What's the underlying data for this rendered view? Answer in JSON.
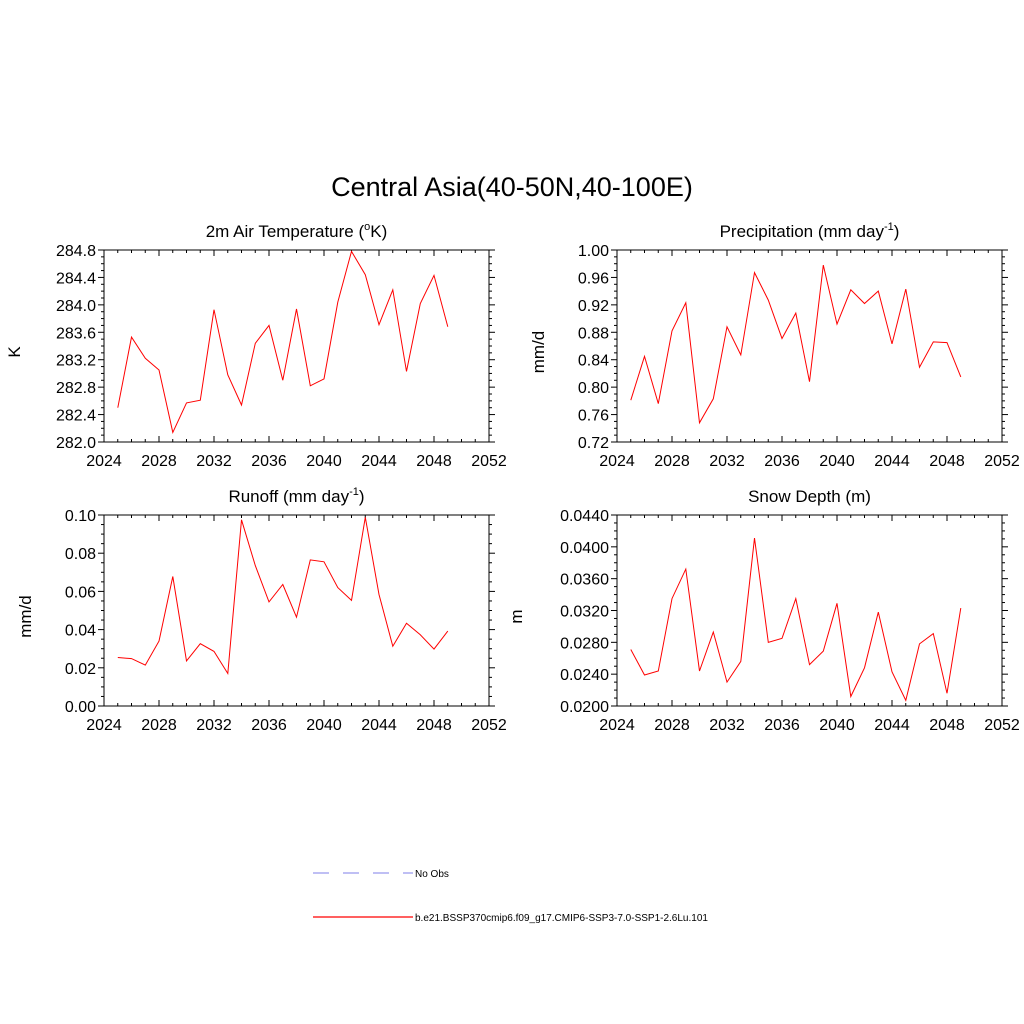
{
  "figure": {
    "title": "Central Asia(40-50N,40-100E)"
  },
  "colors": {
    "series_line": "#ff0000",
    "obs_line": "#9999ee",
    "axis": "#000000"
  },
  "legend": {
    "placement": "bottom-center",
    "items": [
      {
        "label": "No Obs",
        "style": "dashed",
        "color": "#9999ee"
      },
      {
        "label": "b.e21.BSSP370cmip6.f09_g17.CMIP6-SSP3-7.0-SSP1-2.6Lu.101",
        "style": "solid",
        "color": "#ff0000"
      }
    ]
  },
  "chart_data": [
    {
      "type": "line",
      "title": "2m Air Temperature (",
      "title_sup": "o",
      "title_after": "K)",
      "title_sup2": "",
      "title_end": "",
      "xlabel": "",
      "ylabel": "K",
      "xlim": [
        2024,
        2052
      ],
      "ylim": [
        282.0,
        284.8
      ],
      "xticks": [
        2024,
        2028,
        2032,
        2036,
        2040,
        2044,
        2048,
        2052
      ],
      "yticks": [
        "282.0",
        "282.4",
        "282.8",
        "283.2",
        "283.6",
        "284.0",
        "284.4",
        "284.8"
      ],
      "x": [
        2025,
        2026,
        2027,
        2028,
        2029,
        2030,
        2031,
        2032,
        2033,
        2034,
        2035,
        2036,
        2037,
        2038,
        2039,
        2040,
        2041,
        2042,
        2043,
        2044,
        2045,
        2046,
        2047,
        2048,
        2049
      ],
      "series": [
        {
          "name": "b.e21.BSSP370cmip6.f09_g17.CMIP6-SSP3-7.0-SSP1-2.6Lu.101",
          "values": [
            282.5,
            283.53,
            283.22,
            283.05,
            282.14,
            282.57,
            282.61,
            283.93,
            282.98,
            282.54,
            283.44,
            283.7,
            282.9,
            283.94,
            282.82,
            282.92,
            284.04,
            284.78,
            284.44,
            283.71,
            284.22,
            283.03,
            284.02,
            284.43,
            283.68
          ]
        }
      ]
    },
    {
      "type": "line",
      "title": "Precipitation (mm day",
      "title_sup": "",
      "title_after": "",
      "title_sup2": "-1",
      "title_end": ")",
      "xlabel": "",
      "ylabel": "mm/d",
      "xlim": [
        2024,
        2052
      ],
      "ylim": [
        0.72,
        1.0
      ],
      "xticks": [
        2024,
        2028,
        2032,
        2036,
        2040,
        2044,
        2048,
        2052
      ],
      "yticks": [
        "0.72",
        "0.76",
        "0.80",
        "0.84",
        "0.88",
        "0.92",
        "0.96",
        "1.00"
      ],
      "x": [
        2025,
        2026,
        2027,
        2028,
        2029,
        2030,
        2031,
        2032,
        2033,
        2034,
        2035,
        2036,
        2037,
        2038,
        2039,
        2040,
        2041,
        2042,
        2043,
        2044,
        2045,
        2046,
        2047,
        2048,
        2049
      ],
      "series": [
        {
          "name": "b.e21.BSSP370cmip6.f09_g17.CMIP6-SSP3-7.0-SSP1-2.6Lu.101",
          "values": [
            0.781,
            0.845,
            0.776,
            0.882,
            0.923,
            0.748,
            0.783,
            0.888,
            0.847,
            0.967,
            0.927,
            0.871,
            0.908,
            0.808,
            0.978,
            0.892,
            0.942,
            0.922,
            0.94,
            0.863,
            0.943,
            0.829,
            0.866,
            0.865,
            0.815
          ]
        }
      ]
    },
    {
      "type": "line",
      "title": "Runoff (mm day",
      "title_sup": "",
      "title_after": "",
      "title_sup2": "-1",
      "title_end": ")",
      "xlabel": "",
      "ylabel": "mm/d",
      "xlim": [
        2024,
        2052
      ],
      "ylim": [
        0.0,
        0.1
      ],
      "xticks": [
        2024,
        2028,
        2032,
        2036,
        2040,
        2044,
        2048,
        2052
      ],
      "yticks": [
        "0.00",
        "0.02",
        "0.04",
        "0.06",
        "0.08",
        "0.10"
      ],
      "x": [
        2025,
        2026,
        2027,
        2028,
        2029,
        2030,
        2031,
        2032,
        2033,
        2034,
        2035,
        2036,
        2037,
        2038,
        2039,
        2040,
        2041,
        2042,
        2043,
        2044,
        2045,
        2046,
        2047,
        2048,
        2049
      ],
      "series": [
        {
          "name": "b.e21.BSSP370cmip6.f09_g17.CMIP6-SSP3-7.0-SSP1-2.6Lu.101",
          "values": [
            0.0254,
            0.0248,
            0.0214,
            0.034,
            0.0678,
            0.0236,
            0.0326,
            0.0286,
            0.017,
            0.0975,
            0.0735,
            0.0545,
            0.0636,
            0.0465,
            0.0765,
            0.0755,
            0.062,
            0.0553,
            0.0988,
            0.0584,
            0.0313,
            0.0433,
            0.0373,
            0.0298,
            0.0392
          ]
        }
      ]
    },
    {
      "type": "line",
      "title": "Snow Depth (m)",
      "title_sup": "",
      "title_after": "",
      "title_sup2": "",
      "title_end": "",
      "xlabel": "",
      "ylabel": "m",
      "xlim": [
        2024,
        2052
      ],
      "ylim": [
        0.02,
        0.044
      ],
      "xticks": [
        2024,
        2028,
        2032,
        2036,
        2040,
        2044,
        2048,
        2052
      ],
      "yticks": [
        "0.0200",
        "0.0240",
        "0.0280",
        "0.0320",
        "0.0360",
        "0.0400",
        "0.0440"
      ],
      "x": [
        2025,
        2026,
        2027,
        2028,
        2029,
        2030,
        2031,
        2032,
        2033,
        2034,
        2035,
        2036,
        2037,
        2038,
        2039,
        2040,
        2041,
        2042,
        2043,
        2044,
        2045,
        2046,
        2047,
        2048,
        2049
      ],
      "series": [
        {
          "name": "b.e21.BSSP370cmip6.f09_g17.CMIP6-SSP3-7.0-SSP1-2.6Lu.101",
          "values": [
            0.0271,
            0.0239,
            0.0244,
            0.0335,
            0.0372,
            0.0244,
            0.0293,
            0.023,
            0.0256,
            0.0411,
            0.028,
            0.0285,
            0.0335,
            0.0252,
            0.0269,
            0.0329,
            0.0212,
            0.0248,
            0.0318,
            0.0243,
            0.0207,
            0.0278,
            0.0291,
            0.0216,
            0.0323
          ]
        }
      ]
    }
  ]
}
